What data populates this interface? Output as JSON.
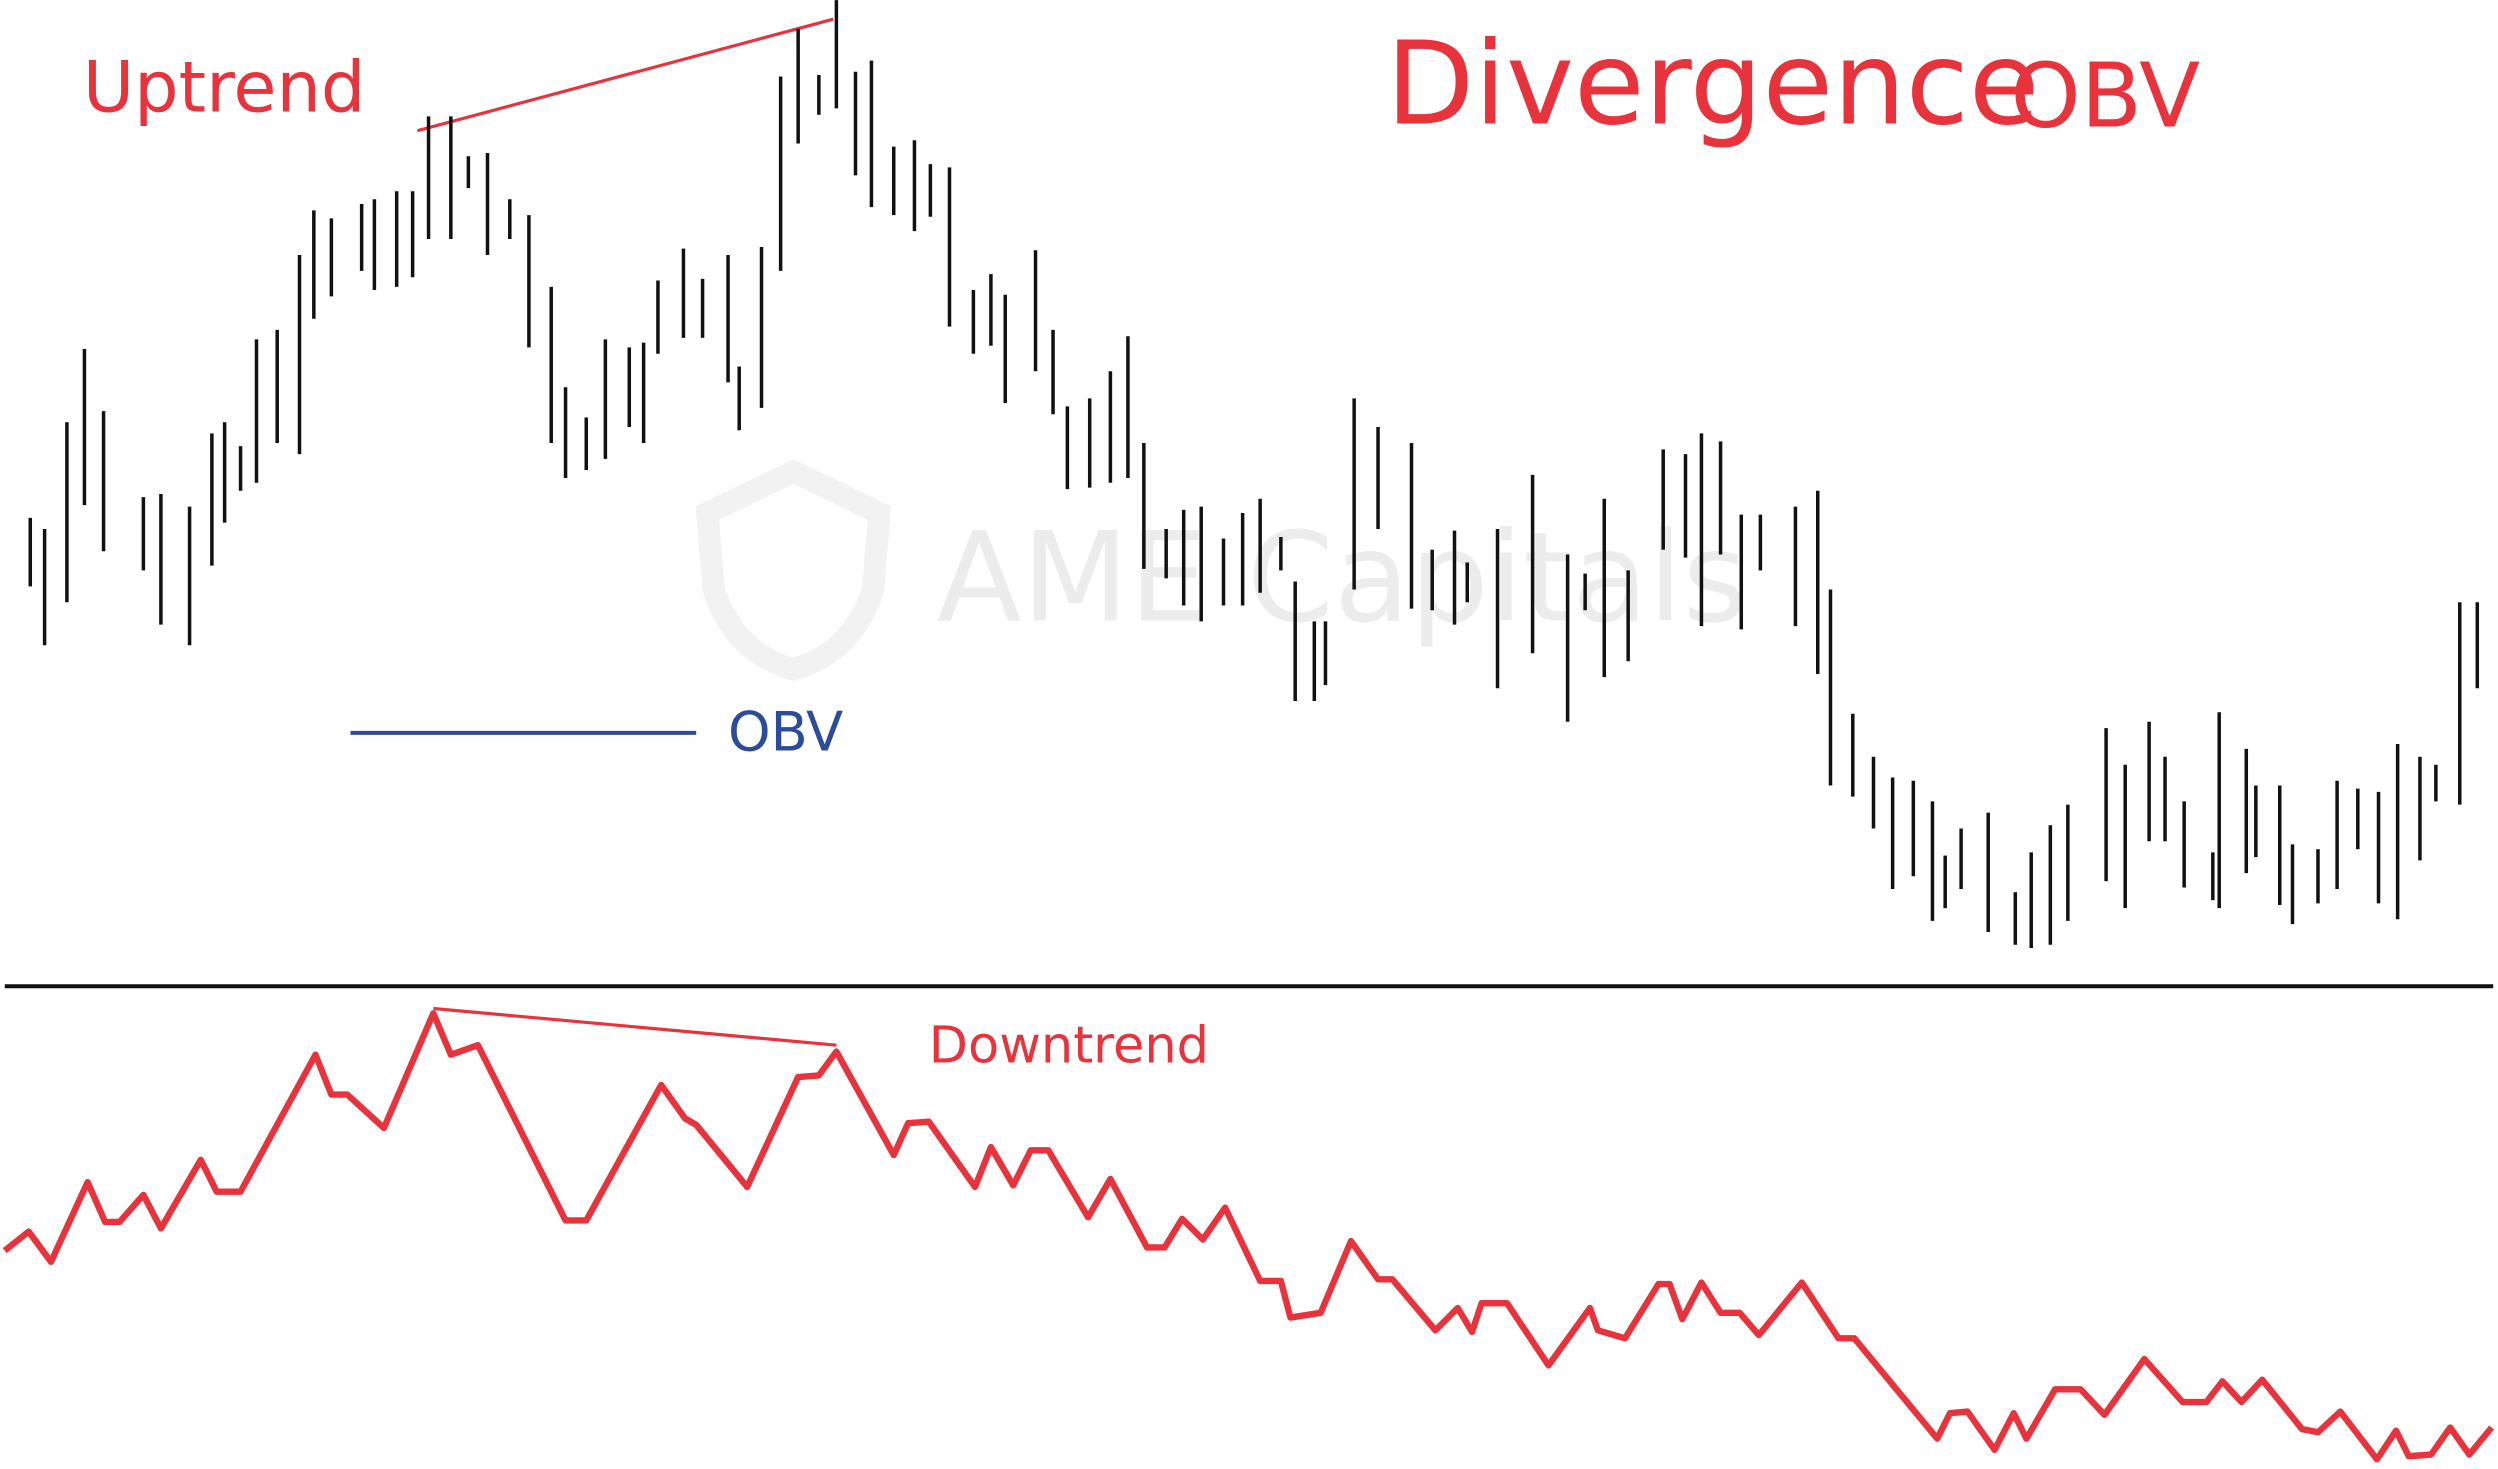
{
  "watermark": "AME Capitals",
  "chart_data": [
    {
      "type": "range-bar",
      "title_parts": [
        "Divergence",
        "OBV"
      ],
      "annotation": "Uptrend",
      "annotation_color": "#e8333c",
      "color": "#111111",
      "xlim": [
        0,
        1568
      ],
      "ylim": [
        0,
        620
      ],
      "x": [
        19,
        28,
        42,
        53,
        65,
        90,
        101,
        119,
        133,
        141,
        151,
        161,
        174,
        188,
        197,
        208,
        227,
        235,
        249,
        259,
        269,
        283,
        294,
        306,
        320,
        332,
        346,
        355,
        368,
        380,
        395,
        404,
        413,
        429,
        441,
        457,
        464,
        478,
        490,
        501,
        514,
        525,
        537,
        547,
        561,
        574,
        584,
        596,
        611,
        622,
        631,
        650,
        661,
        670,
        684,
        697,
        708,
        718,
        732,
        743,
        754,
        768,
        780,
        791,
        804,
        813,
        825,
        832,
        850,
        865,
        886,
        899,
        913,
        921,
        940,
        962,
        984,
        995,
        1007,
        1022,
        1044,
        1058,
        1068,
        1080,
        1093,
        1105,
        1127,
        1141,
        1149,
        1163,
        1176,
        1188,
        1201,
        1213,
        1221,
        1231,
        1248,
        1265,
        1275,
        1287,
        1298,
        1322,
        1334,
        1349,
        1359,
        1371,
        1389,
        1393,
        1410,
        1416,
        1431,
        1439,
        1455,
        1467,
        1480,
        1493,
        1505,
        1519,
        1529,
        1544,
        1555
      ],
      "high": [
        295,
        288,
        355,
        401,
        362,
        308,
        310,
        302,
        348,
        355,
        340,
        407,
        413,
        460,
        488,
        483,
        492,
        495,
        500,
        500,
        547,
        547,
        522,
        524,
        495,
        485,
        440,
        377,
        358,
        407,
        402,
        405,
        444,
        464,
        445,
        460,
        390,
        465,
        572,
        602,
        573,
        620,
        575,
        582,
        528,
        532,
        517,
        515,
        438,
        448,
        435,
        463,
        413,
        365,
        370,
        387,
        409,
        342,
        288,
        300,
        302,
        282,
        298,
        307,
        283,
        255,
        230,
        230,
        370,
        352,
        342,
        275,
        287,
        267,
        288,
        322,
        272,
        260,
        307,
        262,
        338,
        335,
        348,
        343,
        297,
        297,
        302,
        312,
        250,
        172,
        145,
        132,
        130,
        117,
        83,
        100,
        110,
        60,
        85,
        102,
        115,
        163,
        140,
        167,
        145,
        117,
        85,
        173,
        150,
        127,
        127,
        90,
        87,
        130,
        125,
        123,
        153,
        145,
        140,
        242,
        242
      ],
      "low": [
        252,
        215,
        242,
        303,
        274,
        262,
        228,
        215,
        265,
        292,
        312,
        317,
        342,
        335,
        420,
        434,
        450,
        438,
        440,
        446,
        470,
        470,
        502,
        460,
        470,
        402,
        342,
        320,
        325,
        332,
        352,
        342,
        398,
        408,
        408,
        380,
        350,
        364,
        450,
        530,
        548,
        552,
        510,
        490,
        485,
        475,
        484,
        415,
        398,
        403,
        367,
        387,
        360,
        313,
        314,
        317,
        320,
        263,
        257,
        240,
        230,
        240,
        240,
        248,
        262,
        180,
        180,
        190,
        250,
        288,
        238,
        237,
        228,
        242,
        188,
        210,
        167,
        237,
        195,
        205,
        275,
        270,
        227,
        272,
        225,
        262,
        227,
        197,
        127,
        120,
        100,
        62,
        70,
        42,
        50,
        62,
        35,
        27,
        25,
        27,
        42,
        67,
        50,
        92,
        92,
        63,
        55,
        50,
        72,
        82,
        52,
        40,
        53,
        62,
        87,
        53,
        43,
        80,
        117,
        115,
        188
      ]
    },
    {
      "type": "line",
      "annotation": "Downtrend",
      "annotation_color": "#e8333c",
      "legend_color": "#2b4c9b",
      "xlim": [
        0,
        1568
      ],
      "ylim": [
        0,
        310
      ],
      "x": [
        3,
        18,
        32,
        55,
        66,
        75,
        90,
        101,
        126,
        136,
        151,
        198,
        208,
        218,
        241,
        272,
        283,
        300,
        355,
        368,
        415,
        430,
        437,
        469,
        501,
        514,
        525,
        561,
        570,
        583,
        612,
        622,
        636,
        647,
        658,
        683,
        697,
        720,
        731,
        742,
        755,
        769,
        791,
        804,
        810,
        829,
        848,
        865,
        874,
        901,
        915,
        924,
        930,
        946,
        972,
        998,
        1003,
        1020,
        1041,
        1048,
        1056,
        1068,
        1080,
        1092,
        1104,
        1131,
        1154,
        1164,
        1216,
        1224,
        1235,
        1252,
        1264,
        1272,
        1290,
        1306,
        1321,
        1346,
        1370,
        1385,
        1395,
        1407,
        1420,
        1445,
        1455,
        1469,
        1492,
        1504,
        1512,
        1526,
        1538,
        1550,
        1564
      ],
      "series": [
        {
          "name": "OBV",
          "color": "#e8333c",
          "values": [
            145,
            157,
            138,
            188,
            163,
            163,
            180,
            159,
            202,
            182,
            182,
            268,
            243,
            243,
            222,
            294,
            268,
            274,
            164,
            164,
            249,
            228,
            224,
            185,
            254,
            255,
            270,
            205,
            225,
            226,
            185,
            210,
            186,
            208,
            208,
            166,
            190,
            147,
            147,
            165,
            152,
            172,
            126,
            126,
            103,
            106,
            151,
            127,
            127,
            95,
            109,
            94,
            112,
            112,
            73,
            109,
            95,
            90,
            124,
            124,
            102,
            125,
            106,
            106,
            92,
            125,
            90,
            90,
            27,
            43,
            44,
            20,
            43,
            27,
            58,
            58,
            42,
            77,
            50,
            50,
            63,
            50,
            64,
            33,
            31,
            44,
            14,
            32,
            16,
            17,
            34,
            17,
            34
          ]
        }
      ]
    }
  ]
}
